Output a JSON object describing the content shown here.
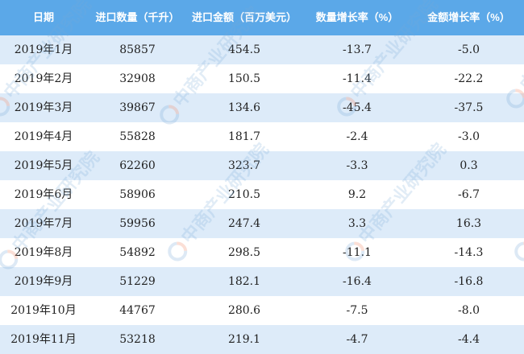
{
  "table": {
    "headers": [
      "日期",
      "进口数量（千升）",
      "进口金额（百万美元）",
      "数量增长率（%）",
      "金额增长率（%）"
    ],
    "rows": [
      [
        "2019年1月",
        "85857",
        "454.5",
        "-13.7",
        "-5.0"
      ],
      [
        "2019年2月",
        "32908",
        "150.5",
        "-11.4",
        "-22.2"
      ],
      [
        "2019年3月",
        "39867",
        "134.6",
        "-45.4",
        "-37.5"
      ],
      [
        "2019年4月",
        "55828",
        "181.7",
        "-2.4",
        "-3.0"
      ],
      [
        "2019年5月",
        "62260",
        "323.7",
        "-3.3",
        "0.3"
      ],
      [
        "2019年6月",
        "58906",
        "210.5",
        "9.2",
        "-6.7"
      ],
      [
        "2019年7月",
        "59956",
        "247.4",
        "3.3",
        "16.3"
      ],
      [
        "2019年8月",
        "54892",
        "298.5",
        "-11.1",
        "-14.3"
      ],
      [
        "2019年9月",
        "51229",
        "182.1",
        "-16.4",
        "-16.8"
      ],
      [
        "2019年10月",
        "44767",
        "280.6",
        "-7.5",
        "-8.0"
      ],
      [
        "2019年11月",
        "53218",
        "219.1",
        "-4.7",
        "-4.4"
      ]
    ]
  },
  "watermark": "中商产业研究院",
  "colors": {
    "header_bg": "#5ba8e8",
    "odd_row_bg": "#ddebf9",
    "even_row_bg": "#ffffff"
  }
}
